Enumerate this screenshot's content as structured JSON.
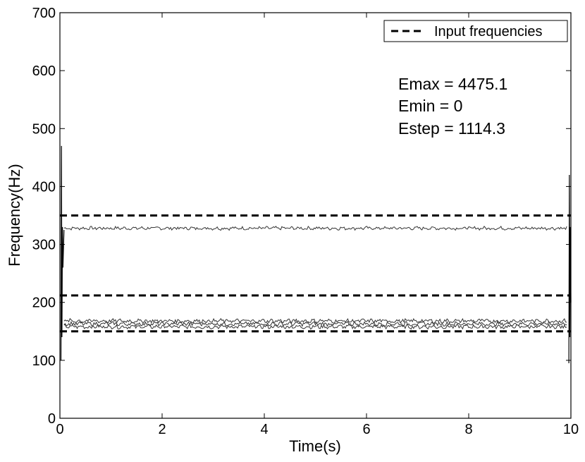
{
  "chart_data": {
    "type": "line",
    "title": "",
    "xlabel": "Time(s)",
    "ylabel": "Frequency(Hz)",
    "xlim": [
      0,
      10
    ],
    "ylim": [
      0,
      700
    ],
    "xticks": [
      0,
      2,
      4,
      6,
      8,
      10
    ],
    "yticks": [
      0,
      100,
      200,
      300,
      400,
      500,
      600,
      700
    ],
    "grid": false,
    "legend": {
      "position": "top-right",
      "entries": [
        "Input frequencies"
      ]
    },
    "annotations": [
      "Emax = 4475.1",
      "Emin = 0",
      "Estep = 1114.3"
    ],
    "input_frequencies": [
      150,
      212,
      350
    ],
    "estimated_tracks": [
      {
        "mean": 328,
        "jitter": 2.5
      },
      {
        "mean": 158,
        "jitter": 3
      },
      {
        "mean": 163,
        "jitter": 3
      },
      {
        "mean": 168,
        "jitter": 3
      }
    ],
    "edge_transients": {
      "start": [
        [
          0.02,
          100
        ],
        [
          0.03,
          470
        ],
        [
          0.04,
          140
        ],
        [
          0.05,
          330
        ],
        [
          0.06,
          260
        ],
        [
          0.08,
          325
        ]
      ],
      "end": [
        [
          9.96,
          95
        ],
        [
          9.97,
          420
        ],
        [
          9.98,
          140
        ],
        [
          9.99,
          330
        ],
        [
          10.0,
          200
        ]
      ]
    }
  }
}
